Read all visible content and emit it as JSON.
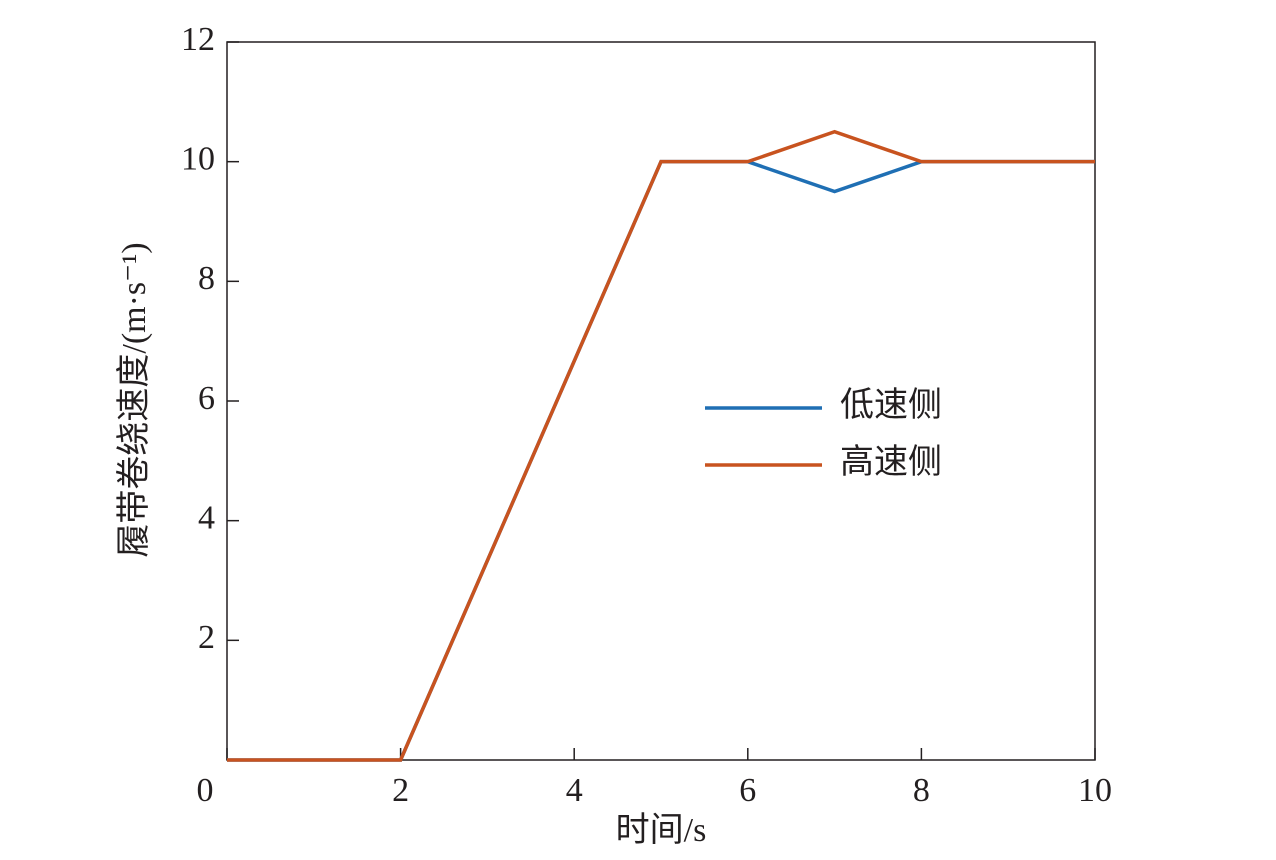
{
  "chart_data": {
    "type": "line",
    "x_label": "时间/s",
    "y_label": "履带卷绕速度/(m·s⁻¹)",
    "x": [
      0,
      2,
      5,
      6,
      7,
      8,
      10
    ],
    "series": [
      {
        "name": "低速侧",
        "color": "#1f6fb4",
        "values": [
          0,
          0,
          10,
          10,
          9.5,
          10,
          10
        ]
      },
      {
        "name": "高速侧",
        "color": "#c8531f",
        "values": [
          0,
          0,
          10,
          10,
          10.5,
          10,
          10
        ]
      }
    ],
    "xlim": [
      0,
      10
    ],
    "xticks": [
      0,
      2,
      4,
      6,
      8,
      10
    ],
    "ylim": [
      0,
      12
    ],
    "yticks": [
      2,
      4,
      6,
      8,
      10,
      12
    ],
    "grid": false
  }
}
